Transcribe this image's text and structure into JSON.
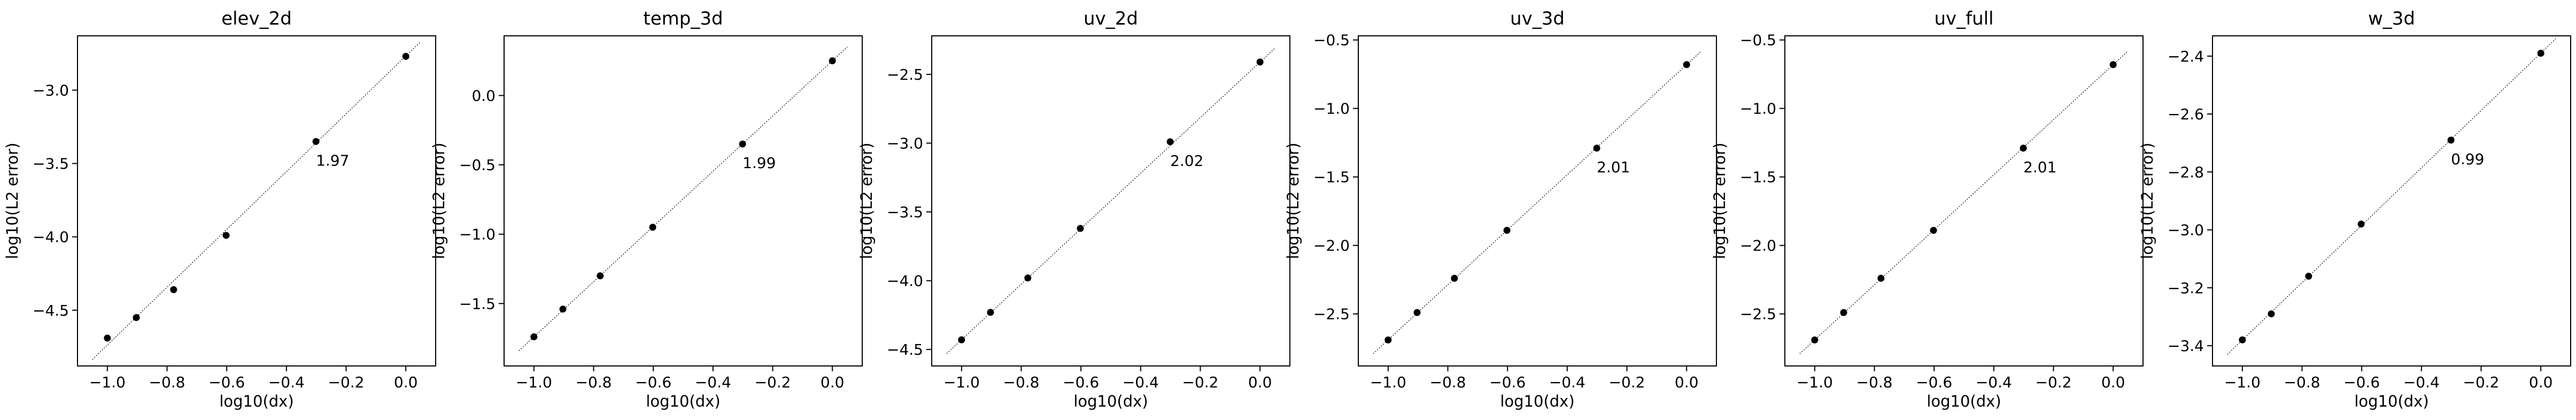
{
  "chart_data": [
    {
      "type": "scatter",
      "title": "elev_2d",
      "xlabel": "log10(dx)",
      "ylabel": "log10(L2 error)",
      "x": [
        -1.0,
        -0.903,
        -0.778,
        -0.602,
        -0.301,
        0.0
      ],
      "y": [
        -4.69,
        -4.55,
        -4.36,
        -3.99,
        -3.35,
        -2.77
      ],
      "xlim": [
        -1.1,
        0.1
      ],
      "ylim": [
        -4.88,
        -2.63
      ],
      "xticks": [
        -1.0,
        -0.8,
        -0.6,
        -0.4,
        -0.2,
        0.0
      ],
      "xtick_labels": [
        "−1.0",
        "−0.8",
        "−0.6",
        "−0.4",
        "−0.2",
        "0.0"
      ],
      "yticks": [
        -4.5,
        -4.0,
        -3.5,
        -3.0
      ],
      "ytick_labels": [
        "−4.5",
        "−4.0",
        "−3.5",
        "−3.0"
      ],
      "fit_line": {
        "x": [
          -1.05,
          0.05
        ],
        "y": [
          -4.836,
          -2.669
        ]
      },
      "annotation": {
        "text": "1.97",
        "x": -0.301,
        "y": -3.35
      }
    },
    {
      "type": "scatter",
      "title": "temp_3d",
      "xlabel": "log10(dx)",
      "ylabel": "log10(L2 error)",
      "x": [
        -1.0,
        -0.903,
        -0.778,
        -0.602,
        -0.301,
        0.0
      ],
      "y": [
        -1.74,
        -1.54,
        -1.3,
        -0.95,
        -0.35,
        0.25
      ],
      "xlim": [
        -1.1,
        0.1
      ],
      "ylim": [
        -1.95,
        0.43
      ],
      "xticks": [
        -1.0,
        -0.8,
        -0.6,
        -0.4,
        -0.2,
        0.0
      ],
      "xtick_labels": [
        "−1.0",
        "−0.8",
        "−0.6",
        "−0.4",
        "−0.2",
        "0.0"
      ],
      "yticks": [
        -1.5,
        -1.0,
        -0.5,
        0.0
      ],
      "ytick_labels": [
        "−1.5",
        "−1.0",
        "−0.5",
        "0.0"
      ],
      "fit_line": {
        "x": [
          -1.05,
          0.05
        ],
        "y": [
          -1.84,
          0.35
        ]
      },
      "annotation": {
        "text": "1.99",
        "x": -0.301,
        "y": -0.35
      }
    },
    {
      "type": "scatter",
      "title": "uv_2d",
      "xlabel": "log10(dx)",
      "ylabel": "log10(L2 error)",
      "x": [
        -1.0,
        -0.903,
        -0.778,
        -0.602,
        -0.301,
        0.0
      ],
      "y": [
        -4.43,
        -4.23,
        -3.98,
        -3.62,
        -2.99,
        -2.41
      ],
      "xlim": [
        -1.1,
        0.1
      ],
      "ylim": [
        -4.62,
        -2.22
      ],
      "xticks": [
        -1.0,
        -0.8,
        -0.6,
        -0.4,
        -0.2,
        0.0
      ],
      "xtick_labels": [
        "−1.0",
        "−0.8",
        "−0.6",
        "−0.4",
        "−0.2",
        "0.0"
      ],
      "yticks": [
        -4.5,
        -4.0,
        -3.5,
        -3.0,
        -2.5
      ],
      "ytick_labels": [
        "−4.5",
        "−4.0",
        "−3.5",
        "−3.0",
        "−2.5"
      ],
      "fit_line": {
        "x": [
          -1.05,
          0.05
        ],
        "y": [
          -4.53,
          -2.31
        ]
      },
      "annotation": {
        "text": "2.02",
        "x": -0.301,
        "y": -2.99
      }
    },
    {
      "type": "scatter",
      "title": "uv_3d",
      "xlabel": "log10(dx)",
      "ylabel": "log10(L2 error)",
      "x": [
        -1.0,
        -0.903,
        -0.778,
        -0.602,
        -0.301,
        0.0
      ],
      "y": [
        -2.69,
        -2.49,
        -2.24,
        -1.89,
        -1.29,
        -0.68
      ],
      "xlim": [
        -1.1,
        0.1
      ],
      "ylim": [
        -2.88,
        -0.47
      ],
      "xticks": [
        -1.0,
        -0.8,
        -0.6,
        -0.4,
        -0.2,
        0.0
      ],
      "xtick_labels": [
        "−1.0",
        "−0.8",
        "−0.6",
        "−0.4",
        "−0.2",
        "0.0"
      ],
      "yticks": [
        -2.5,
        -2.0,
        -1.5,
        -1.0,
        -0.5
      ],
      "ytick_labels": [
        "−2.5",
        "−2.0",
        "−1.5",
        "−1.0",
        "−0.5"
      ],
      "fit_line": {
        "x": [
          -1.05,
          0.05
        ],
        "y": [
          -2.79,
          -0.58
        ]
      },
      "annotation": {
        "text": "2.01",
        "x": -0.301,
        "y": -1.29
      }
    },
    {
      "type": "scatter",
      "title": "uv_full",
      "xlabel": "log10(dx)",
      "ylabel": "log10(L2 error)",
      "x": [
        -1.0,
        -0.903,
        -0.778,
        -0.602,
        -0.301,
        0.0
      ],
      "y": [
        -2.69,
        -2.49,
        -2.24,
        -1.89,
        -1.29,
        -0.68
      ],
      "xlim": [
        -1.1,
        0.1
      ],
      "ylim": [
        -2.88,
        -0.47
      ],
      "xticks": [
        -1.0,
        -0.8,
        -0.6,
        -0.4,
        -0.2,
        0.0
      ],
      "xtick_labels": [
        "−1.0",
        "−0.8",
        "−0.6",
        "−0.4",
        "−0.2",
        "0.0"
      ],
      "yticks": [
        -2.5,
        -2.0,
        -1.5,
        -1.0,
        -0.5
      ],
      "ytick_labels": [
        "−2.5",
        "−2.0",
        "−1.5",
        "−1.0",
        "−0.5"
      ],
      "fit_line": {
        "x": [
          -1.05,
          0.05
        ],
        "y": [
          -2.79,
          -0.58
        ]
      },
      "annotation": {
        "text": "2.01",
        "x": -0.301,
        "y": -1.29
      }
    },
    {
      "type": "scatter",
      "title": "w_3d",
      "xlabel": "log10(dx)",
      "ylabel": "log10(L2 error)",
      "x": [
        -1.0,
        -0.903,
        -0.778,
        -0.602,
        -0.301,
        0.0
      ],
      "y": [
        -3.38,
        -3.29,
        -3.16,
        -2.98,
        -2.69,
        -2.39
      ],
      "xlim": [
        -1.1,
        0.1
      ],
      "ylim": [
        -3.47,
        -2.33
      ],
      "xticks": [
        -1.0,
        -0.8,
        -0.6,
        -0.4,
        -0.2,
        0.0
      ],
      "xtick_labels": [
        "−1.0",
        "−0.8",
        "−0.6",
        "−0.4",
        "−0.2",
        "0.0"
      ],
      "yticks": [
        -3.4,
        -3.2,
        -3.0,
        -2.8,
        -2.6,
        -2.4
      ],
      "ytick_labels": [
        "−3.4",
        "−3.2",
        "−3.0",
        "−2.8",
        "−2.6",
        "−2.4"
      ],
      "fit_line": {
        "x": [
          -1.05,
          0.05
        ],
        "y": [
          -3.43,
          -2.34
        ]
      },
      "annotation": {
        "text": "0.99",
        "x": -0.301,
        "y": -2.69
      }
    }
  ]
}
